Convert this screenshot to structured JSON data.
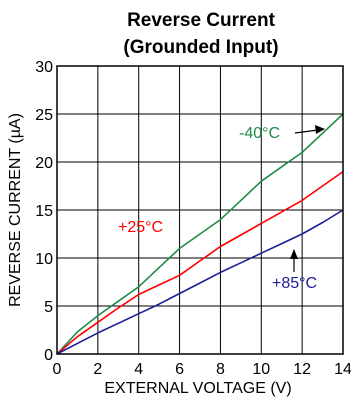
{
  "chart_data": {
    "type": "line",
    "title": "Reverse Current",
    "subtitle": "(Grounded Input)",
    "xlabel": "EXTERNAL VOLTAGE (V)",
    "ylabel": "REVERSE CURRENT (µA)",
    "xlim": [
      0,
      14
    ],
    "ylim": [
      0,
      30
    ],
    "xticks": [
      "0",
      "2",
      "4",
      "6",
      "8",
      "10",
      "12",
      "14"
    ],
    "yticks": [
      "0",
      "5",
      "10",
      "15",
      "20",
      "25",
      "30"
    ],
    "grid": true,
    "series": [
      {
        "name": "-40°C",
        "color": "#1e8c46",
        "x": [
          0,
          1,
          2,
          3,
          4,
          5,
          6,
          7,
          8,
          9,
          10,
          11,
          12,
          13,
          14
        ],
        "y": [
          0,
          2.3,
          4.0,
          5.5,
          7.0,
          9.0,
          11.0,
          12.5,
          14.0,
          16.0,
          18.0,
          19.5,
          21.0,
          23.0,
          25.0
        ]
      },
      {
        "name": "+25°C",
        "color": "#ff0000",
        "x": [
          0,
          1,
          2,
          3,
          4,
          5,
          6,
          7,
          8,
          9,
          10,
          11,
          12,
          13,
          14
        ],
        "y": [
          0,
          1.8,
          3.3,
          4.8,
          6.2,
          7.2,
          8.2,
          9.7,
          11.2,
          12.4,
          13.6,
          14.8,
          16.0,
          17.5,
          19.0
        ]
      },
      {
        "name": "+85°C",
        "color": "#1e1e96",
        "x": [
          0,
          1,
          2,
          3,
          4,
          5,
          6,
          7,
          8,
          9,
          10,
          11,
          12,
          13,
          14
        ],
        "y": [
          0,
          1.1,
          2.2,
          3.2,
          4.2,
          5.2,
          6.3,
          7.4,
          8.5,
          9.5,
          10.5,
          11.5,
          12.5,
          13.7,
          15.0
        ]
      }
    ],
    "annotations": [
      {
        "text": "-40°C",
        "color": "#1e8c46",
        "arrow": "right"
      },
      {
        "text": "+25°C",
        "color": "#ff0000",
        "arrow": "none"
      },
      {
        "text": "+85°C",
        "color": "#1e1e96",
        "arrow": "up"
      }
    ]
  }
}
